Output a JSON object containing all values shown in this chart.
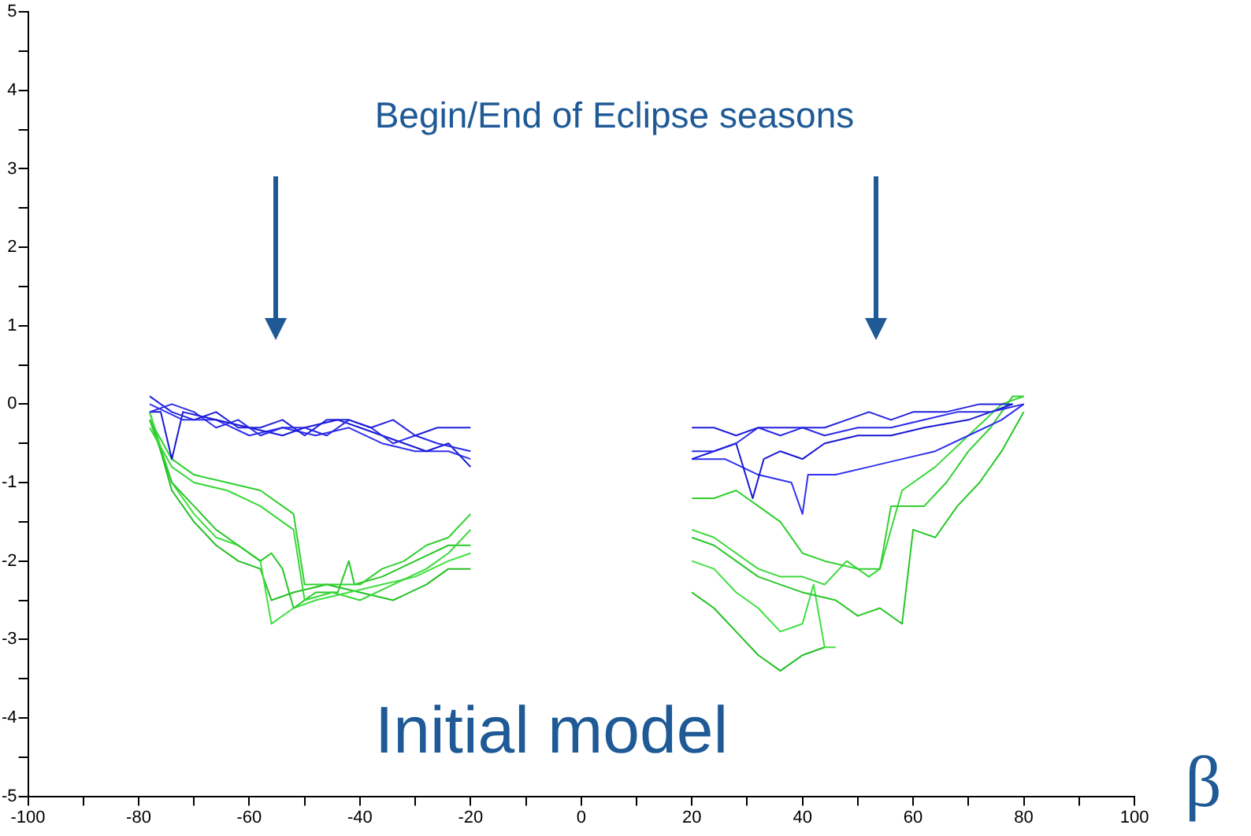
{
  "chart_data": {
    "type": "line",
    "xlabel": "β",
    "annotations": [
      "Begin/End of Eclipse seasons",
      "Initial model"
    ],
    "xlim": [
      -100,
      100
    ],
    "xticks": [
      -100,
      {
        "value": -90,
        "label": null
      },
      -80,
      {
        "value": -70,
        "label": null
      },
      -60,
      {
        "value": -50,
        "label": null
      },
      -40,
      {
        "value": -30,
        "label": null
      },
      -20,
      {
        "value": -10,
        "label": null
      },
      0,
      {
        "value": 10,
        "label": null
      },
      20,
      {
        "value": 30,
        "label": null
      },
      40,
      {
        "value": 50,
        "label": null
      },
      60,
      {
        "value": 70,
        "label": null
      },
      80,
      {
        "value": 90,
        "label": null
      },
      100
    ],
    "ylim": [
      -5,
      5
    ],
    "yticks": [
      -5,
      {
        "value": -4.5,
        "label": null
      },
      -4,
      {
        "value": -3.5,
        "label": null
      },
      -3,
      {
        "value": -2.5,
        "label": null
      },
      -2,
      {
        "value": -1.5,
        "label": null
      },
      -1,
      {
        "value": -0.5,
        "label": null
      },
      0,
      {
        "value": 0.5,
        "label": null
      },
      1,
      {
        "value": 1.5,
        "label": null
      },
      2,
      {
        "value": 2.5,
        "label": null
      },
      3,
      {
        "value": 3.5,
        "label": null
      },
      4,
      {
        "value": 4.5,
        "label": null
      },
      5
    ],
    "grid": false,
    "legend": false,
    "marker": "none",
    "line_style": "solid",
    "series": [
      {
        "color": "#2020e0",
        "x": [
          -78,
          -74,
          -70,
          -66,
          -62,
          -58,
          -54,
          -50,
          -46,
          -42,
          -38,
          -34,
          -30,
          -26,
          -20,
          0,
          20,
          24,
          28,
          32,
          36,
          40,
          44,
          48,
          52,
          56,
          60,
          66,
          72,
          78
        ],
        "values": [
          0.1,
          -0.1,
          -0.2,
          -0.1,
          -0.3,
          -0.3,
          -0.2,
          -0.4,
          -0.2,
          -0.2,
          -0.3,
          -0.2,
          -0.4,
          -0.3,
          -0.3,
          null,
          -0.3,
          -0.3,
          -0.4,
          -0.3,
          -0.3,
          -0.3,
          -0.3,
          -0.2,
          -0.1,
          -0.2,
          -0.1,
          -0.1,
          0,
          0
        ]
      },
      {
        "color": "#2a2ae8",
        "x": [
          -78,
          -74,
          -70,
          -66,
          -62,
          -58,
          -54,
          -50,
          -46,
          -42,
          -38,
          -34,
          -30,
          -26,
          -20,
          0,
          20,
          24,
          28,
          32,
          36,
          40,
          44,
          50,
          56,
          62,
          68,
          74,
          80
        ],
        "values": [
          -0.1,
          0,
          -0.1,
          -0.3,
          -0.2,
          -0.4,
          -0.3,
          -0.3,
          -0.4,
          -0.2,
          -0.3,
          -0.5,
          -0.4,
          -0.5,
          -0.6,
          null,
          -0.6,
          -0.6,
          -0.5,
          -0.3,
          -0.4,
          -0.3,
          -0.4,
          -0.3,
          -0.3,
          -0.2,
          -0.1,
          -0.1,
          0
        ]
      },
      {
        "color": "#1818d4",
        "x": [
          -78,
          -76,
          -74,
          -72,
          -66,
          -60,
          -54,
          -50,
          -44,
          -40,
          -36,
          -32,
          -28,
          -24,
          -20,
          0,
          20,
          24,
          28,
          31,
          33,
          36,
          40,
          44,
          50,
          56,
          62,
          70,
          78
        ],
        "values": [
          -0.1,
          -0.1,
          -0.7,
          -0.1,
          -0.2,
          -0.3,
          -0.4,
          -0.3,
          -0.2,
          -0.3,
          -0.4,
          -0.5,
          -0.6,
          -0.5,
          -0.8,
          null,
          -0.7,
          -0.6,
          -0.5,
          -1.2,
          -0.7,
          -0.6,
          -0.7,
          -0.5,
          -0.4,
          -0.4,
          -0.3,
          -0.2,
          0
        ]
      },
      {
        "color": "#3030f0",
        "x": [
          -78,
          -72,
          -66,
          -60,
          -54,
          -48,
          -42,
          -36,
          -30,
          -24,
          -20,
          0,
          20,
          26,
          32,
          38,
          40,
          41,
          46,
          52,
          58,
          64,
          70,
          76,
          80
        ],
        "values": [
          0,
          -0.2,
          -0.2,
          -0.4,
          -0.3,
          -0.4,
          -0.3,
          -0.5,
          -0.6,
          -0.6,
          -0.7,
          null,
          -0.7,
          -0.7,
          -0.9,
          -1.0,
          -1.4,
          -0.9,
          -0.9,
          -0.8,
          -0.7,
          -0.6,
          -0.4,
          -0.2,
          0
        ]
      },
      {
        "color": "#30d030",
        "x": [
          -78,
          -74,
          -70,
          -64,
          -58,
          -54,
          -52,
          -50,
          -45,
          -40,
          -36,
          -32,
          -28,
          -24,
          -20,
          0,
          20,
          24,
          28,
          32,
          36,
          40,
          44,
          50,
          54,
          56,
          62,
          66,
          70,
          74,
          78,
          80
        ],
        "values": [
          -0.2,
          -0.7,
          -0.9,
          -1.0,
          -1.1,
          -1.3,
          -1.4,
          -2.3,
          -2.3,
          -2.3,
          -2.1,
          -2.0,
          -1.8,
          -1.7,
          -1.4,
          null,
          -1.2,
          -1.2,
          -1.1,
          -1.3,
          -1.5,
          -1.9,
          -2.0,
          -2.1,
          -2.1,
          -1.3,
          -1.3,
          -1.0,
          -0.6,
          -0.3,
          0.1,
          0.1
        ]
      },
      {
        "color": "#3ad83a",
        "x": [
          -78,
          -74,
          -70,
          -64,
          -58,
          -54,
          -52,
          -50,
          -45,
          -40,
          -34,
          -28,
          -24,
          -20,
          0,
          20,
          24,
          28,
          32,
          36,
          40,
          44,
          48,
          52,
          54,
          58,
          64,
          70,
          76,
          80
        ],
        "values": [
          -0.3,
          -0.8,
          -1.0,
          -1.1,
          -1.3,
          -1.5,
          -1.6,
          -2.5,
          -2.4,
          -2.5,
          -2.3,
          -2.1,
          -1.9,
          -1.6,
          null,
          -1.6,
          -1.7,
          -1.9,
          -2.1,
          -2.2,
          -2.2,
          -2.3,
          -2.0,
          -2.2,
          -2.1,
          -1.1,
          -0.8,
          -0.4,
          0,
          0.1
        ]
      },
      {
        "color": "#28c828",
        "x": [
          -78,
          -74,
          -70,
          -66,
          -62,
          -58,
          -56,
          -54,
          -52,
          -48,
          -44,
          -42,
          -41,
          -36,
          -30,
          -24,
          -20,
          0,
          20,
          24,
          28,
          32,
          36,
          40,
          46,
          50,
          54,
          58,
          60,
          64,
          68,
          72,
          76,
          80
        ],
        "values": [
          -0.2,
          -1.0,
          -1.3,
          -1.6,
          -1.8,
          -2.0,
          -1.9,
          -2.1,
          -2.6,
          -2.4,
          -2.4,
          -2.0,
          -2.3,
          -2.2,
          -2.0,
          -1.8,
          -1.8,
          null,
          -1.7,
          -1.8,
          -2.0,
          -2.2,
          -2.3,
          -2.4,
          -2.5,
          -2.7,
          -2.6,
          -2.8,
          -1.6,
          -1.7,
          -1.3,
          -1.0,
          -0.6,
          -0.1
        ]
      },
      {
        "color": "#40e040",
        "x": [
          -78,
          -74,
          -70,
          -66,
          -62,
          -58,
          -56,
          -52,
          -48,
          -42,
          -36,
          -30,
          -24,
          -20,
          0,
          20,
          24,
          28,
          32,
          36,
          40,
          42,
          44,
          46
        ],
        "values": [
          -0.1,
          -1.0,
          -1.4,
          -1.7,
          -1.8,
          -2.0,
          -2.8,
          -2.6,
          -2.5,
          -2.4,
          -2.3,
          -2.2,
          -2.0,
          -1.9,
          null,
          -2.0,
          -2.1,
          -2.4,
          -2.6,
          -2.9,
          -2.8,
          -2.3,
          -3.1,
          -3.1
        ]
      },
      {
        "color": "#22c022",
        "x": [
          -78,
          -74,
          -70,
          -66,
          -62,
          -58,
          -56,
          -52,
          -46,
          -40,
          -34,
          -28,
          -24,
          -20,
          0,
          20,
          24,
          28,
          32,
          36,
          40,
          44
        ],
        "values": [
          -0.1,
          -1.1,
          -1.5,
          -1.8,
          -2.0,
          -2.1,
          -2.5,
          -2.4,
          -2.3,
          -2.4,
          -2.5,
          -2.3,
          -2.1,
          -2.1,
          null,
          -2.4,
          -2.6,
          -2.9,
          -3.2,
          -3.4,
          -3.2,
          -3.1
        ]
      }
    ]
  }
}
